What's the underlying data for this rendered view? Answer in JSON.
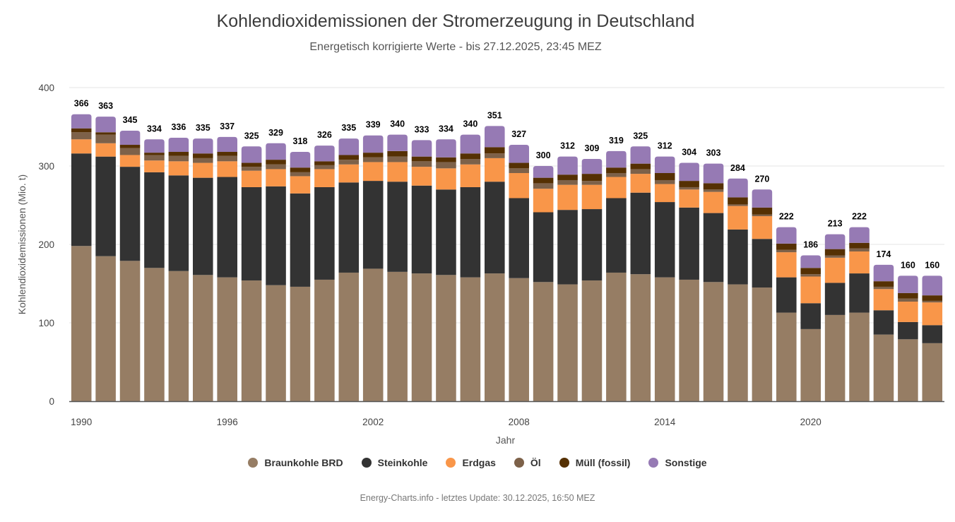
{
  "header": {
    "title": "Kohlendioxidemissionen der Stromerzeugung in Deutschland",
    "subtitle": "Energetisch korrigierte Werte - bis 27.12.2025, 23:45 MEZ"
  },
  "footer": {
    "credits": "Energy-Charts.info - letztes Update: 30.12.2025, 16:50 MEZ"
  },
  "chart_data": {
    "type": "bar",
    "stacked": true,
    "title": "Kohlendioxidemissionen der Stromerzeugung in Deutschland",
    "subtitle": "Energetisch korrigierte Werte - bis 27.12.2025, 23:45 MEZ",
    "xlabel": "Jahr",
    "ylabel": "Kohlendioxidemissionen (Mio. t)",
    "ylim": [
      0,
      400
    ],
    "yticks": [
      0,
      100,
      200,
      300,
      400
    ],
    "xtick_labels": [
      "1990",
      "1996",
      "2002",
      "2008",
      "2014",
      "2020"
    ],
    "grid": true,
    "legend_position": "bottom",
    "categories": [
      "1990",
      "1991",
      "1992",
      "1993",
      "1994",
      "1995",
      "1996",
      "1997",
      "1998",
      "1999",
      "2000",
      "2001",
      "2002",
      "2003",
      "2004",
      "2005",
      "2006",
      "2007",
      "2008",
      "2009",
      "2010",
      "2011",
      "2012",
      "2013",
      "2014",
      "2015",
      "2016",
      "2017",
      "2018",
      "2019",
      "2020",
      "2021",
      "2022",
      "2023",
      "2024",
      "2025"
    ],
    "totals": [
      366,
      363,
      345,
      334,
      336,
      335,
      337,
      325,
      329,
      318,
      326,
      335,
      339,
      340,
      333,
      334,
      340,
      351,
      327,
      300,
      312,
      309,
      319,
      325,
      312,
      304,
      303,
      284,
      270,
      222,
      186,
      213,
      222,
      174,
      160,
      160
    ],
    "series": [
      {
        "name": "Braunkohle BRD",
        "color": "#967d64",
        "values": [
          198,
          185,
          179,
          170,
          166,
          161,
          158,
          154,
          148,
          146,
          155,
          164,
          169,
          165,
          163,
          161,
          158,
          163,
          157,
          152,
          149,
          154,
          164,
          162,
          158,
          155,
          152,
          149,
          145,
          113,
          92,
          110,
          113,
          85,
          79,
          74
        ]
      },
      {
        "name": "Steinkohle",
        "color": "#333333",
        "values": [
          118,
          127,
          120,
          122,
          122,
          124,
          128,
          119,
          126,
          119,
          118,
          115,
          112,
          115,
          112,
          109,
          115,
          117,
          102,
          89,
          95,
          91,
          95,
          104,
          96,
          92,
          88,
          70,
          62,
          45,
          33,
          41,
          50,
          31,
          22,
          23
        ]
      },
      {
        "name": "Erdgas",
        "color": "#f99649",
        "values": [
          18,
          17,
          15,
          15,
          18,
          19,
          20,
          21,
          22,
          22,
          23,
          23,
          24,
          25,
          24,
          27,
          29,
          30,
          32,
          30,
          32,
          31,
          27,
          24,
          23,
          23,
          27,
          30,
          29,
          32,
          34,
          32,
          28,
          27,
          26,
          29
        ]
      },
      {
        "name": "Öl",
        "color": "#7d6149",
        "values": [
          9,
          11,
          9,
          7,
          7,
          6,
          7,
          5,
          6,
          5,
          5,
          6,
          6,
          7,
          7,
          8,
          7,
          6,
          6,
          7,
          6,
          5,
          5,
          6,
          5,
          3,
          3,
          2,
          2,
          3,
          3,
          3,
          4,
          3,
          4,
          2
        ]
      },
      {
        "name": "Müll (fossil)",
        "color": "#553003",
        "values": [
          5,
          3,
          4,
          3,
          5,
          6,
          5,
          5,
          6,
          6,
          5,
          6,
          6,
          7,
          6,
          6,
          7,
          8,
          7,
          7,
          7,
          9,
          7,
          7,
          9,
          8,
          8,
          9,
          9,
          8,
          8,
          8,
          7,
          7,
          7,
          7
        ]
      },
      {
        "name": "Sonstige",
        "color": "#967ab4",
        "values": [
          18,
          20,
          18,
          17,
          18,
          19,
          19,
          21,
          21,
          20,
          20,
          21,
          22,
          21,
          21,
          23,
          24,
          27,
          23,
          15,
          23,
          19,
          21,
          22,
          21,
          23,
          25,
          24,
          23,
          21,
          16,
          19,
          20,
          21,
          22,
          25
        ]
      }
    ]
  }
}
